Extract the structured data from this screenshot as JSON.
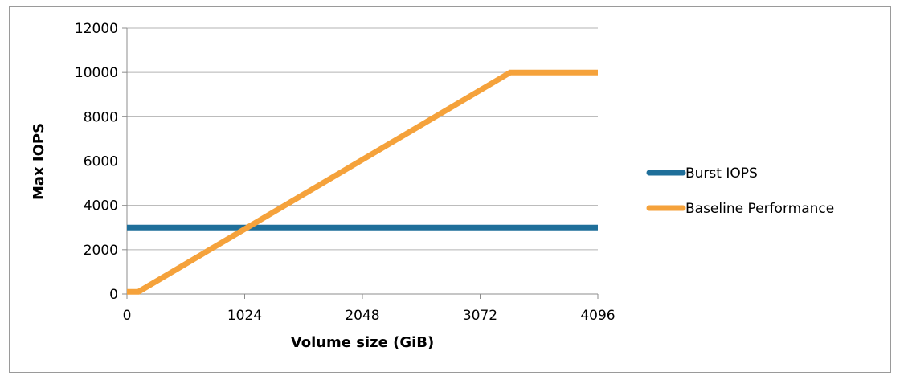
{
  "chart_data": {
    "type": "line",
    "title": "",
    "xlabel": "Volume size (GiB)",
    "ylabel": "Max IOPS",
    "xlim": [
      0,
      4096
    ],
    "ylim": [
      0,
      12000
    ],
    "x_ticks": [
      0,
      1024,
      2048,
      3072,
      4096
    ],
    "y_ticks": [
      0,
      2000,
      4000,
      6000,
      8000,
      10000,
      12000
    ],
    "x_tick_labels": [
      "0",
      "1024",
      "2048",
      "3072",
      "4096"
    ],
    "y_tick_labels": [
      "0",
      "2000",
      "4000",
      "6000",
      "8000",
      "10000",
      "12000"
    ],
    "grid": "horizontal",
    "legend_position": "right",
    "series": [
      {
        "name": "Burst IOPS",
        "color": "#1f6f9a",
        "points": [
          [
            0,
            3000
          ],
          [
            4096,
            3000
          ]
        ]
      },
      {
        "name": "Baseline Performance",
        "color": "#f5a23b",
        "points": [
          [
            0,
            100
          ],
          [
            100,
            100
          ],
          [
            3334,
            10000
          ],
          [
            4096,
            10000
          ]
        ]
      }
    ]
  }
}
